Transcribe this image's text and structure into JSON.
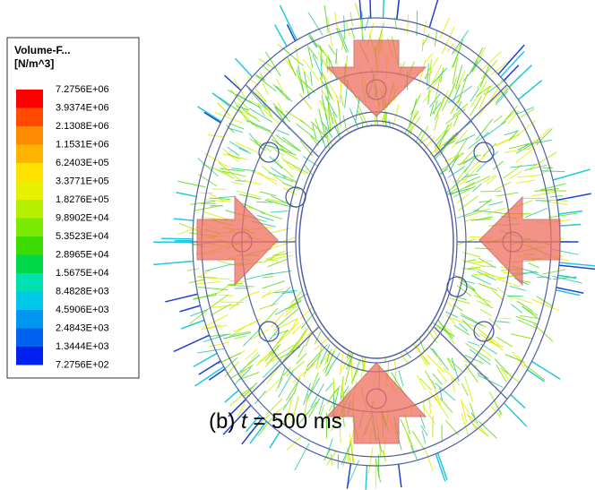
{
  "legend": {
    "title": "Volume-F...",
    "units": "[N/m^3]",
    "labels": [
      "7.2756E+06",
      "3.9374E+06",
      "2.1308E+06",
      "1.1531E+06",
      "6.2403E+05",
      "3.3771E+05",
      "1.8276E+05",
      "9.8902E+04",
      "5.3523E+04",
      "2.8965E+04",
      "1.5675E+04",
      "8.4828E+03",
      "4.5906E+03",
      "2.4843E+03",
      "1.3444E+03",
      "7.2756E+02"
    ],
    "colors": [
      "#ff0000",
      "#ff4a00",
      "#ff8c00",
      "#ffb400",
      "#ffe000",
      "#e6f000",
      "#b4f000",
      "#7aea00",
      "#3ddc00",
      "#00d84a",
      "#00e0b0",
      "#00c8e8",
      "#0096f0",
      "#0060f0",
      "#0020f0"
    ]
  },
  "caption": {
    "prefix": "(b) ",
    "variable": "t",
    "suffix": " = 500 ms"
  }
}
